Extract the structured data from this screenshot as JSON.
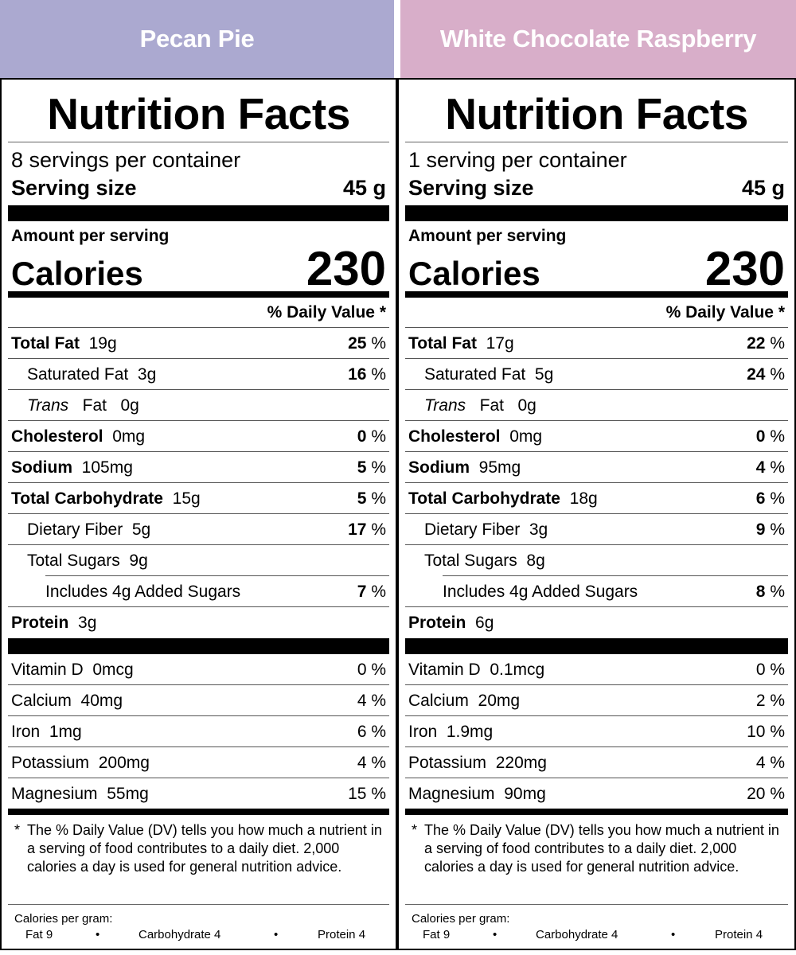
{
  "headers": {
    "left": {
      "label": "Pecan Pie",
      "color": "#aba9d0"
    },
    "right": {
      "label": "White Chocolate Raspberry",
      "color": "#d8aec9"
    }
  },
  "labels": [
    {
      "title": "Nutrition Facts",
      "servings": "8 servings per container",
      "serving_size_label": "Serving size",
      "serving_size": "45 g",
      "amount_per_serving": "Amount per serving",
      "calories_label": "Calories",
      "calories": "230",
      "dv_header": "% Daily Value *",
      "rows": [
        {
          "name": "Total Fat",
          "amount": "19g",
          "dv": "25",
          "unit": "%"
        },
        {
          "name": "Saturated Fat",
          "amount": "3g",
          "dv": "16",
          "unit": "%"
        },
        {
          "name": "Trans",
          "name2": "Fat",
          "amount": "0g"
        },
        {
          "name": "Cholesterol",
          "amount": "0mg",
          "dv": "0",
          "unit": "%"
        },
        {
          "name": "Sodium",
          "amount": "105mg",
          "dv": "5",
          "unit": "%"
        },
        {
          "name": "Total Carbohydrate",
          "amount": "15g",
          "dv": "5",
          "unit": "%"
        },
        {
          "name": "Dietary Fiber",
          "amount": "5g",
          "dv": "17",
          "unit": "%"
        },
        {
          "name": "Total Sugars",
          "amount": "9g"
        },
        {
          "name": "Includes 4g Added Sugars",
          "dv": "7",
          "unit": "%"
        },
        {
          "name": "Protein",
          "amount": "3g"
        }
      ],
      "vitamins": [
        {
          "name": "Vitamin D",
          "amount": "0mcg",
          "dv": "0 %"
        },
        {
          "name": "Calcium",
          "amount": "40mg",
          "dv": "4 %"
        },
        {
          "name": "Iron",
          "amount": "1mg",
          "dv": "6 %"
        },
        {
          "name": "Potassium",
          "amount": "200mg",
          "dv": "4 %"
        },
        {
          "name": "Magnesium",
          "amount": "55mg",
          "dv": "15 %"
        }
      ],
      "footnote_star": "*",
      "footnote": "The % Daily Value (DV) tells you how much a nutrient in a serving of food contributes to a daily diet. 2,000 calories a day is used for general nutrition advice.",
      "calories_per_gram": "Calories per gram:",
      "fat_per_gram": "Fat 9",
      "carb_per_gram": "Carbohydrate 4",
      "protein_per_gram": "Protein 4",
      "bullet": "•"
    },
    {
      "title": "Nutrition Facts",
      "servings": "1 serving per container",
      "serving_size_label": "Serving size",
      "serving_size": "45 g",
      "amount_per_serving": "Amount per serving",
      "calories_label": "Calories",
      "calories": "230",
      "dv_header": "% Daily Value *",
      "rows": [
        {
          "name": "Total Fat",
          "amount": "17g",
          "dv": "22",
          "unit": "%"
        },
        {
          "name": "Saturated Fat",
          "amount": "5g",
          "dv": "24",
          "unit": "%"
        },
        {
          "name": "Trans",
          "name2": "Fat",
          "amount": "0g"
        },
        {
          "name": "Cholesterol",
          "amount": "0mg",
          "dv": "0",
          "unit": "%"
        },
        {
          "name": "Sodium",
          "amount": "95mg",
          "dv": "4",
          "unit": "%"
        },
        {
          "name": "Total Carbohydrate",
          "amount": "18g",
          "dv": "6",
          "unit": "%"
        },
        {
          "name": "Dietary Fiber",
          "amount": "3g",
          "dv": "9",
          "unit": "%"
        },
        {
          "name": "Total Sugars",
          "amount": "8g"
        },
        {
          "name": "Includes 4g Added Sugars",
          "dv": "8",
          "unit": "%"
        },
        {
          "name": "Protein",
          "amount": "6g"
        }
      ],
      "vitamins": [
        {
          "name": "Vitamin D",
          "amount": "0.1mcg",
          "dv": "0 %"
        },
        {
          "name": "Calcium",
          "amount": "20mg",
          "dv": "2 %"
        },
        {
          "name": "Iron",
          "amount": "1.9mg",
          "dv": "10 %"
        },
        {
          "name": "Potassium",
          "amount": "220mg",
          "dv": "4 %"
        },
        {
          "name": "Magnesium",
          "amount": "90mg",
          "dv": "20 %"
        }
      ],
      "footnote_star": "*",
      "footnote": "The % Daily Value (DV) tells you how much a nutrient in a serving of food contributes to a daily diet. 2,000 calories a day is used for general nutrition advice.",
      "calories_per_gram": "Calories per gram:",
      "fat_per_gram": "Fat 9",
      "carb_per_gram": "Carbohydrate 4",
      "protein_per_gram": "Protein 4",
      "bullet": "•"
    }
  ]
}
